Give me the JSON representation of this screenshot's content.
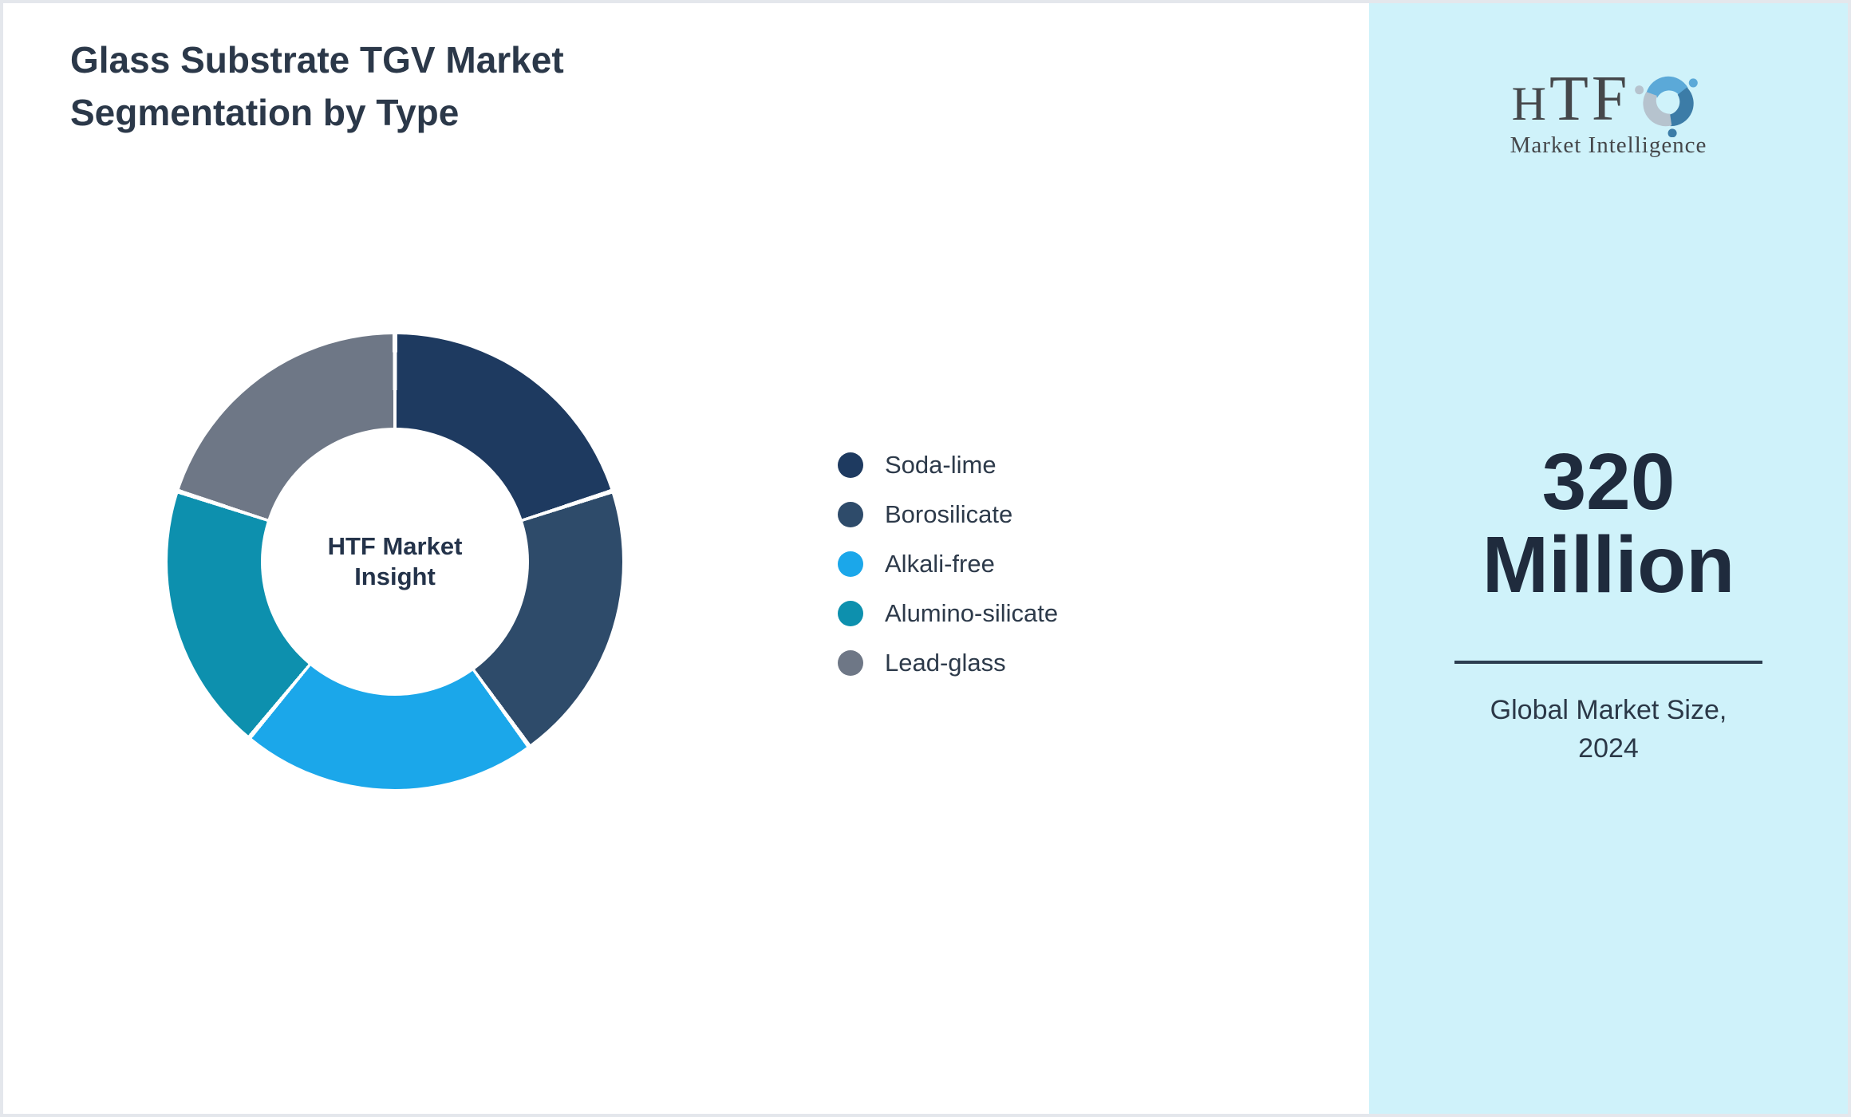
{
  "title": {
    "text": "Glass Substrate TGV Market Segmentation by Type",
    "lines": [
      "Glass Substrate TGV Market",
      "Segmentation by Type"
    ]
  },
  "chart_data": {
    "type": "pie",
    "subtype": "donut",
    "start_angle_deg": 0,
    "direction": "clockwise",
    "segment_gap_deg": 1.2,
    "legend_position": "right-center",
    "center_label": "HTF Market Insight",
    "center_label_lines": [
      "HTF Market",
      "Insight"
    ],
    "units": "percent (estimated from arc angles)",
    "segments": [
      {
        "label": "Soda-lime",
        "value": 20,
        "color": "#1e3a60"
      },
      {
        "label": "Borosilicate",
        "value": 20,
        "color": "#2e4b6a"
      },
      {
        "label": "Alkali-free",
        "value": 21,
        "color": "#1ba7ea"
      },
      {
        "label": "Alumino-silicate",
        "value": 19,
        "color": "#0d90ae"
      },
      {
        "label": "Lead-glass",
        "value": 20,
        "color": "#6e7786"
      }
    ]
  },
  "sidebar": {
    "logo": {
      "text_h": "H",
      "text_tf": "TF",
      "subtext": "Market Intelligence"
    },
    "market_size": {
      "text": "320 Million",
      "lines": [
        "320",
        "Million"
      ]
    },
    "caption": {
      "text": "Global Market Size, 2024",
      "lines": [
        "Global Market Size,",
        "2024"
      ]
    }
  },
  "colors": {
    "page_border": "#e4e7ec",
    "title_text": "#2b3849",
    "center_label_text": "#24334a",
    "legend_text": "#2d3a4a",
    "sidebar_bg": "#cff2fa",
    "big_number_text": "#1f2b3d",
    "divider": "#2d3e50",
    "caption_text": "#2b3847",
    "logo_text": "#45474a",
    "logo_blue": "#5ba9d8",
    "logo_steel": "#3c7ca7",
    "logo_gray": "#b6c3ce"
  }
}
